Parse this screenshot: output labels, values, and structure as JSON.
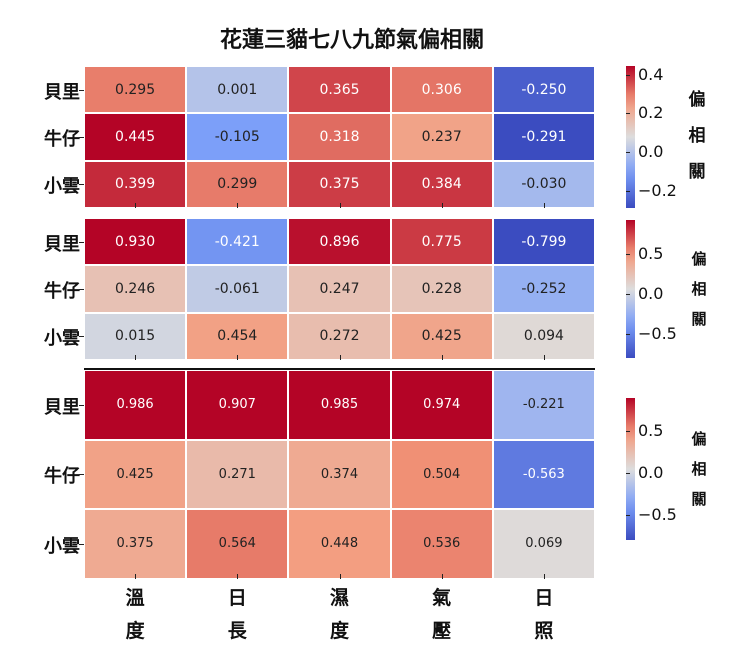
{
  "chart_data": {
    "type": "heatmap",
    "title": "花蓮三貓七八九節氣偏相關",
    "columns": [
      "溫度",
      "日長",
      "濕度",
      "氣壓",
      "日照"
    ],
    "colormap": "coolwarm",
    "colorbar_label": "偏相關",
    "panels": [
      {
        "rows": [
          "貝里",
          "牛仔",
          "小雲"
        ],
        "values": [
          [
            0.295,
            0.001,
            0.365,
            0.306,
            -0.25
          ],
          [
            0.445,
            -0.105,
            0.318,
            0.237,
            -0.291
          ],
          [
            0.399,
            0.299,
            0.375,
            0.384,
            -0.03
          ]
        ],
        "colorbar_range": [
          -0.29,
          0.445
        ],
        "colorbar_ticks": [
          "0.4",
          "0.2",
          "0.0",
          "−0.2"
        ],
        "colorbar_tick_values": [
          0.4,
          0.2,
          0.0,
          -0.2
        ]
      },
      {
        "rows": [
          "貝里",
          "牛仔",
          "小雲"
        ],
        "values": [
          [
            0.93,
            -0.421,
            0.896,
            0.775,
            -0.799
          ],
          [
            0.246,
            -0.061,
            0.247,
            0.228,
            -0.252
          ],
          [
            0.015,
            0.454,
            0.272,
            0.425,
            0.094
          ]
        ],
        "colorbar_range": [
          -0.8,
          0.93
        ],
        "colorbar_ticks": [
          "0.5",
          "0.0",
          "−0.5"
        ],
        "colorbar_tick_values": [
          0.5,
          0.0,
          -0.5
        ]
      },
      {
        "rows": [
          "貝里",
          "牛仔",
          "小雲"
        ],
        "values": [
          [
            0.986,
            0.907,
            0.985,
            0.974,
            -0.221
          ],
          [
            0.425,
            0.271,
            0.374,
            0.504,
            -0.563
          ],
          [
            0.375,
            0.564,
            0.448,
            0.536,
            0.069
          ]
        ],
        "colorbar_range": [
          -0.8,
          0.9
        ],
        "colorbar_ticks": [
          "0.5",
          "0.0",
          "−0.5"
        ],
        "colorbar_tick_values": [
          0.5,
          0.0,
          -0.5
        ]
      }
    ]
  }
}
